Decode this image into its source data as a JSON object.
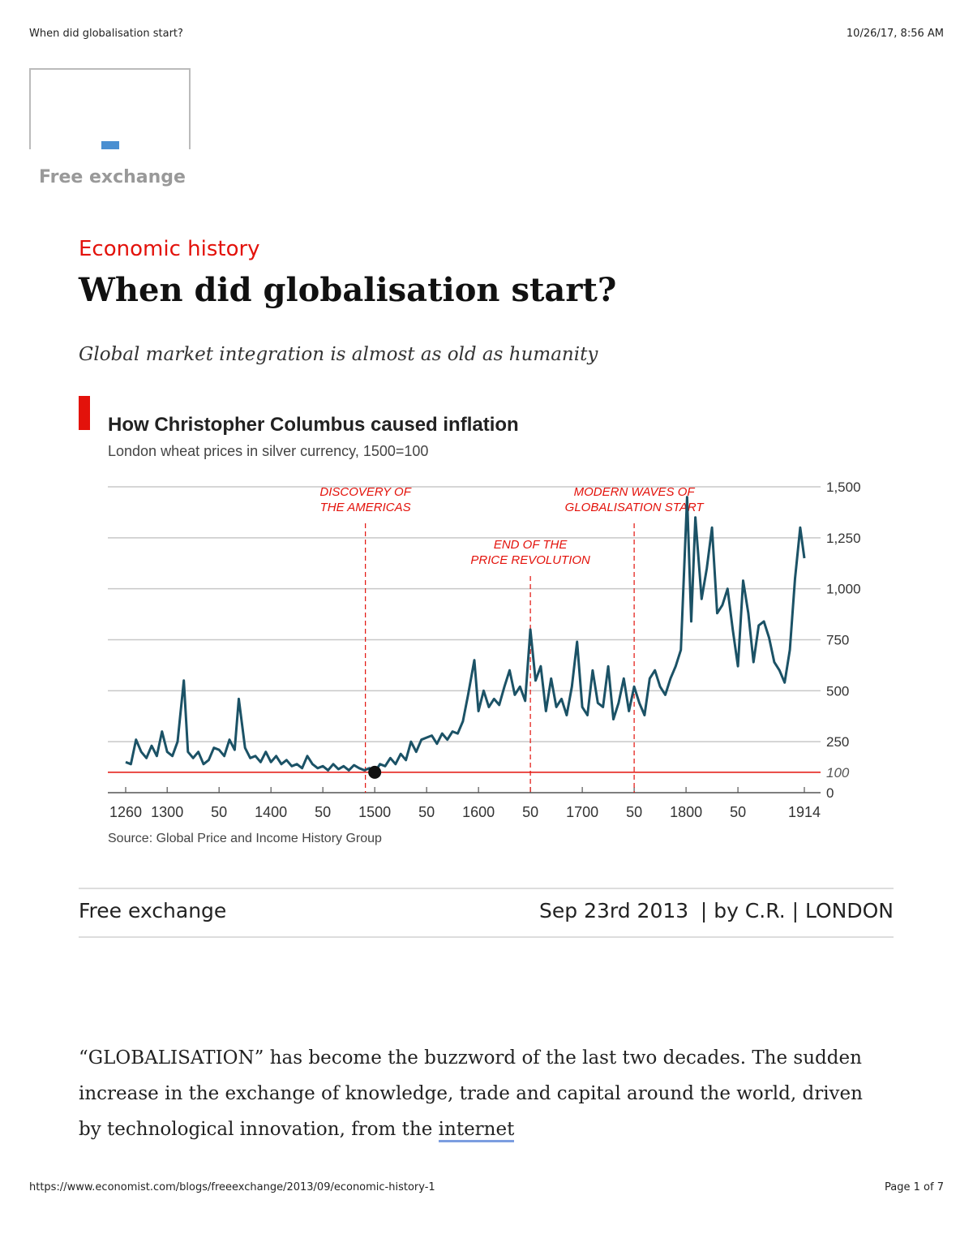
{
  "print_header": {
    "title": "When did globalisation start?",
    "timestamp": "10/26/17, 8:56 AM"
  },
  "sidebar": {
    "label": "Free exchange"
  },
  "article": {
    "kicker": "Economic history",
    "headline": "When did globalisation start?",
    "standfirst": "Global market integration is almost as old as humanity"
  },
  "chart_data": {
    "type": "line",
    "title": "How Christopher Columbus caused inflation",
    "subtitle": "London wheat prices in silver currency, 1500=100",
    "source": "Source: Global Price and Income History Group",
    "color": "#1b5266",
    "x": [
      1260,
      1265,
      1270,
      1275,
      1280,
      1285,
      1290,
      1295,
      1300,
      1305,
      1310,
      1316,
      1320,
      1325,
      1330,
      1335,
      1340,
      1345,
      1350,
      1355,
      1360,
      1365,
      1369,
      1375,
      1380,
      1385,
      1390,
      1395,
      1400,
      1405,
      1410,
      1415,
      1420,
      1425,
      1430,
      1435,
      1440,
      1445,
      1450,
      1455,
      1460,
      1465,
      1470,
      1475,
      1480,
      1485,
      1490,
      1495,
      1500,
      1505,
      1510,
      1515,
      1520,
      1525,
      1530,
      1535,
      1540,
      1545,
      1550,
      1555,
      1560,
      1565,
      1570,
      1575,
      1580,
      1585,
      1590,
      1596,
      1600,
      1605,
      1610,
      1615,
      1620,
      1625,
      1630,
      1635,
      1640,
      1645,
      1650,
      1655,
      1660,
      1665,
      1670,
      1675,
      1680,
      1685,
      1690,
      1695,
      1700,
      1705,
      1710,
      1715,
      1720,
      1725,
      1730,
      1735,
      1740,
      1745,
      1750,
      1755,
      1760,
      1765,
      1770,
      1775,
      1780,
      1785,
      1790,
      1795,
      1801,
      1805,
      1809,
      1815,
      1820,
      1825,
      1830,
      1835,
      1840,
      1845,
      1850,
      1855,
      1860,
      1865,
      1870,
      1875,
      1880,
      1885,
      1890,
      1895,
      1900,
      1905,
      1910,
      1914
    ],
    "values": [
      150,
      140,
      260,
      200,
      170,
      230,
      180,
      300,
      200,
      180,
      250,
      550,
      200,
      170,
      200,
      140,
      160,
      220,
      210,
      180,
      260,
      210,
      460,
      220,
      170,
      180,
      150,
      200,
      150,
      180,
      140,
      160,
      130,
      140,
      120,
      180,
      140,
      120,
      130,
      110,
      140,
      115,
      130,
      110,
      135,
      120,
      110,
      120,
      100,
      140,
      130,
      170,
      140,
      190,
      160,
      250,
      200,
      260,
      270,
      280,
      240,
      290,
      260,
      300,
      290,
      350,
      480,
      650,
      400,
      500,
      420,
      460,
      430,
      520,
      600,
      480,
      520,
      450,
      800,
      550,
      620,
      400,
      560,
      420,
      460,
      380,
      520,
      740,
      420,
      380,
      600,
      440,
      420,
      620,
      360,
      440,
      560,
      400,
      520,
      440,
      380,
      560,
      600,
      520,
      480,
      560,
      620,
      700,
      1450,
      840,
      1350,
      950,
      1100,
      1300,
      880,
      920,
      1000,
      800,
      620,
      1040,
      880,
      640,
      820,
      840,
      760,
      640,
      600,
      540,
      700,
      1050,
      1300,
      1150
    ],
    "xlim": [
      1260,
      1914
    ],
    "xticks": [
      1260,
      1300,
      {
        "value": 1350,
        "label": "50"
      },
      1400,
      {
        "value": 1450,
        "label": "50"
      },
      1500,
      {
        "value": 1550,
        "label": "50"
      },
      1600,
      {
        "value": 1650,
        "label": "50"
      },
      1700,
      {
        "value": 1750,
        "label": "50"
      },
      1800,
      {
        "value": 1850,
        "label": "50"
      },
      1914
    ],
    "ylim": [
      0,
      1500
    ],
    "yticks": [
      0,
      100,
      250,
      500,
      750,
      {
        "value": 1000,
        "label": "1,000"
      },
      {
        "value": 1250,
        "label": "1,250"
      },
      {
        "value": 1500,
        "label": "1,500"
      }
    ],
    "reference_line": 100,
    "highlight_point": {
      "x": 1500,
      "y": 100
    },
    "annotations": [
      {
        "x": 1491,
        "text": [
          "DISCOVERY OF",
          "THE AMERICAS"
        ]
      },
      {
        "x": 1650,
        "text": [
          "END OF THE",
          "PRICE REVOLUTION"
        ]
      },
      {
        "x": 1750,
        "text": [
          "MODERN WAVES OF",
          "GLOBALISATION START"
        ]
      }
    ],
    "grid": true
  },
  "byline": {
    "section": "Free exchange",
    "date": "Sep 23rd 2013",
    "author": "| by C.R. | LONDON"
  },
  "body": {
    "text": "“GLOBALISATION” has become the buzzword of the last two decades. The sudden increase in the exchange of knowledge, trade and capital around the world, driven by technological innovation, from the ",
    "link": "internet"
  },
  "print_footer": {
    "url": "https://www.economist.com/blogs/freeexchange/2013/09/economic-history-1",
    "page": "Page 1 of 7"
  }
}
